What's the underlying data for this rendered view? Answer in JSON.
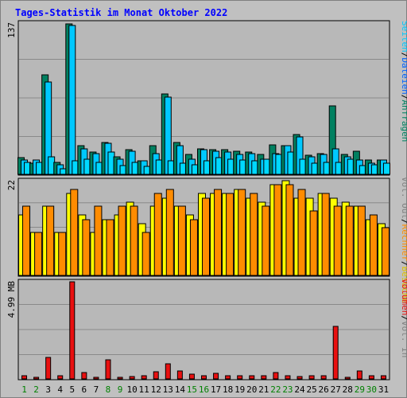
{
  "title": "Tages-Statistik im Monat Oktober 2022",
  "colors": {
    "title": "#0000ff",
    "frame_bg": "#c0c0c0",
    "plot_bg": "#b8b8b8",
    "grid": "#8a8a8a",
    "hits": "#008060",
    "files": "#00c8ff",
    "pages": "#00d8ff",
    "visits": "#ffff00",
    "sites": "#ff8c00",
    "kbytes": "#e81010",
    "weekend_label": "#008000",
    "weekday_label": "#000000"
  },
  "right_labels": {
    "panel1": [
      {
        "text": "Anfragen",
        "color": "#008060"
      },
      {
        "text": "Dateien",
        "color": "#0060ff"
      },
      {
        "text": "Seiten",
        "color": "#00c8ff"
      }
    ],
    "panel2": [
      {
        "text": "Besuche",
        "color": "#e0c000"
      },
      {
        "text": "Rechner",
        "color": "#ff8c00"
      },
      {
        "text": "Vol. Out",
        "color": "#808080"
      }
    ],
    "panel3": [
      {
        "text": "Vol. In",
        "color": "#808080"
      },
      {
        "text": "Volumen",
        "color": "#e81010"
      }
    ],
    "separator": "/"
  },
  "chart_data": {
    "type": "bar",
    "title": "Tages-Statistik im Monat Oktober 2022",
    "categories": [
      "1",
      "2",
      "3",
      "4",
      "5",
      "6",
      "7",
      "8",
      "9",
      "10",
      "11",
      "12",
      "13",
      "14",
      "15",
      "16",
      "17",
      "18",
      "19",
      "20",
      "21",
      "22",
      "23",
      "24",
      "25",
      "26",
      "27",
      "28",
      "29",
      "30",
      "31"
    ],
    "weekend_days": [
      "1",
      "2",
      "8",
      "9",
      "15",
      "16",
      "22",
      "23",
      "29",
      "30"
    ],
    "panels": [
      {
        "id": "requests",
        "max_label": "137",
        "ymax": 137,
        "series": [
          {
            "name": "Anfragen",
            "values": [
              15,
              10,
              90,
              11,
              136,
              26,
              20,
              29,
              16,
              22,
              12,
              26,
              73,
              29,
              18,
              23,
              22,
              22,
              21,
              20,
              18,
              27,
              26,
              36,
              17,
              19,
              62,
              18,
              21,
              13,
              13
            ]
          },
          {
            "name": "Dateien",
            "values": [
              13,
              13,
              84,
              9,
              135,
              23,
              19,
              28,
              14,
              21,
              12,
              19,
              70,
              26,
              14,
              22,
              21,
              20,
              18,
              19,
              14,
              19,
              26,
              34,
              16,
              18,
              23,
              16,
              13,
              10,
              13
            ]
          },
          {
            "name": "Seiten",
            "values": [
              11,
              11,
              16,
              5,
              12,
              14,
              11,
              20,
              8,
              11,
              7,
              13,
              12,
              10,
              9,
              12,
              15,
              14,
              13,
              12,
              14,
              18,
              20,
              14,
              10,
              11,
              11,
              14,
              8,
              9,
              10
            ]
          }
        ]
      },
      {
        "id": "visits",
        "max_label": "22",
        "ymax": 22,
        "series": [
          {
            "name": "Besuche",
            "values": [
              14,
              10,
              16,
              10,
              19,
              14,
              10,
              13,
              14,
              17,
              12,
              16,
              18,
              16,
              14,
              19,
              19,
              19,
              20,
              18,
              17,
              21,
              22,
              18,
              18,
              19,
              18,
              17,
              16,
              13,
              12
            ]
          },
          {
            "name": "Rechner",
            "values": [
              16,
              10,
              16,
              10,
              20,
              13,
              16,
              13,
              16,
              16,
              10,
              19,
              20,
              16,
              13,
              18,
              20,
              19,
              20,
              19,
              16,
              21,
              21,
              20,
              15,
              19,
              16,
              16,
              16,
              14,
              11
            ]
          }
        ]
      },
      {
        "id": "volume",
        "max_label": "4.99 MB",
        "unit": "MB",
        "ymax": 4.99,
        "series": [
          {
            "name": "Volumen",
            "values": [
              0.15,
              0.07,
              1.1,
              0.18,
              4.99,
              0.32,
              0.1,
              1.0,
              0.06,
              0.14,
              0.16,
              0.38,
              0.77,
              0.42,
              0.24,
              0.16,
              0.3,
              0.15,
              0.18,
              0.15,
              0.15,
              0.33,
              0.15,
              0.14,
              0.17,
              0.17,
              2.7,
              0.08,
              0.4,
              0.17,
              0.15
            ]
          }
        ]
      }
    ]
  }
}
